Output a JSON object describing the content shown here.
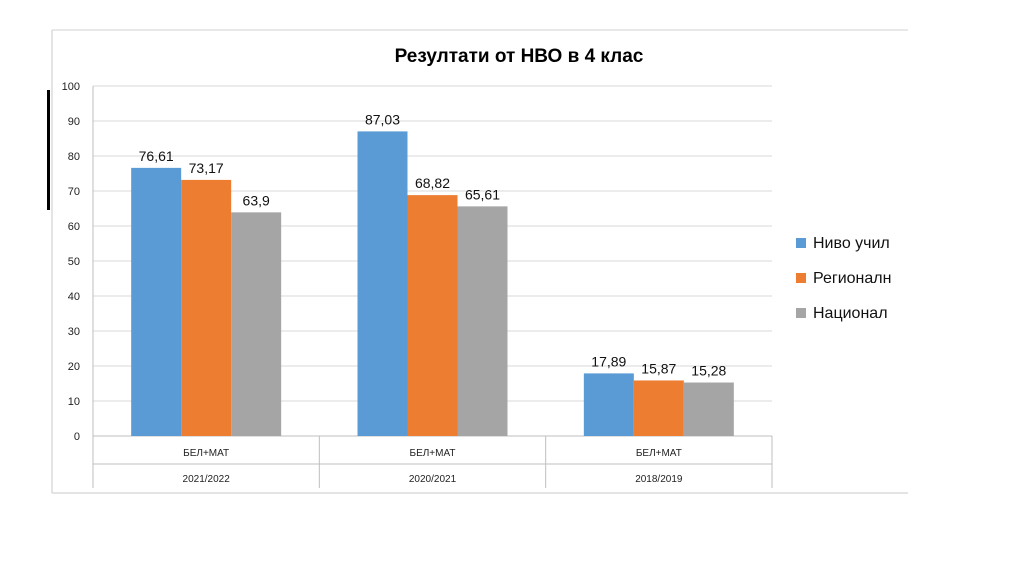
{
  "chart_data": {
    "type": "bar",
    "title": "Резултати от НВО в 4 клас",
    "categories": [
      "БЕЛ+МАТ",
      "БЕЛ+МАТ",
      "БЕЛ+МАТ"
    ],
    "groups": [
      "2021/2022",
      "2020/2021",
      "2018/2019"
    ],
    "series": [
      {
        "name": "Ниво учил",
        "values": [
          76.61,
          87.03,
          17.89
        ],
        "labels": [
          "76,61",
          "87,03",
          "17,89"
        ],
        "color": "#5b9bd5"
      },
      {
        "name": "Регионалн",
        "values": [
          73.17,
          68.82,
          15.87
        ],
        "labels": [
          "73,17",
          "68,82",
          "15,87"
        ],
        "color": "#ed7d31"
      },
      {
        "name": "Национал",
        "values": [
          63.9,
          65.61,
          15.28
        ],
        "labels": [
          "63,9",
          "65,61",
          "15,28"
        ],
        "color": "#a5a5a5"
      }
    ],
    "ylim": [
      0,
      100
    ],
    "yticks": [
      0,
      10,
      20,
      30,
      40,
      50,
      60,
      70,
      80,
      90,
      100
    ],
    "grid": true,
    "legend": "right"
  }
}
